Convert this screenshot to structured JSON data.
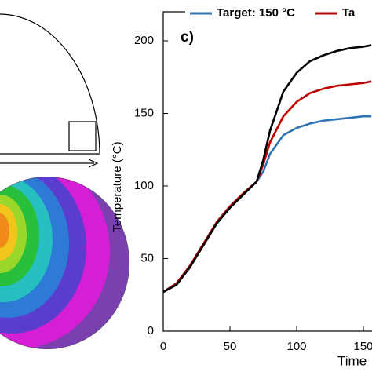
{
  "chart_data": {
    "type": "line",
    "panel_label": "c)",
    "y_label": "Temperature (°C)",
    "x_label": "Time",
    "x": [
      0,
      10,
      20,
      30,
      40,
      50,
      60,
      70,
      75,
      80,
      90,
      100,
      110,
      120,
      130,
      140,
      150,
      156
    ],
    "series": [
      {
        "name": "Target: 150 °C",
        "color": "#2e75b6",
        "values": [
          27,
          33,
          45,
          60,
          75,
          86,
          95,
          103,
          110,
          122,
          135,
          140,
          143,
          145,
          146,
          147,
          148,
          148
        ]
      },
      {
        "name": "Ta",
        "color": "#c00000",
        "values": [
          27,
          33,
          45,
          60,
          75,
          86,
          95,
          103,
          115,
          130,
          148,
          158,
          164,
          167,
          169,
          170,
          171,
          172
        ]
      },
      {
        "color": "#000000",
        "values": [
          27,
          32,
          44,
          59,
          74,
          85,
          94,
          103,
          118,
          138,
          165,
          178,
          186,
          190,
          193,
          195,
          196,
          197
        ]
      }
    ],
    "xlim": [
      0,
      156
    ],
    "ylim": [
      0,
      220
    ],
    "xticks": [
      0,
      50,
      100,
      150
    ],
    "yticks": [
      0,
      50,
      100,
      150,
      200
    ]
  }
}
